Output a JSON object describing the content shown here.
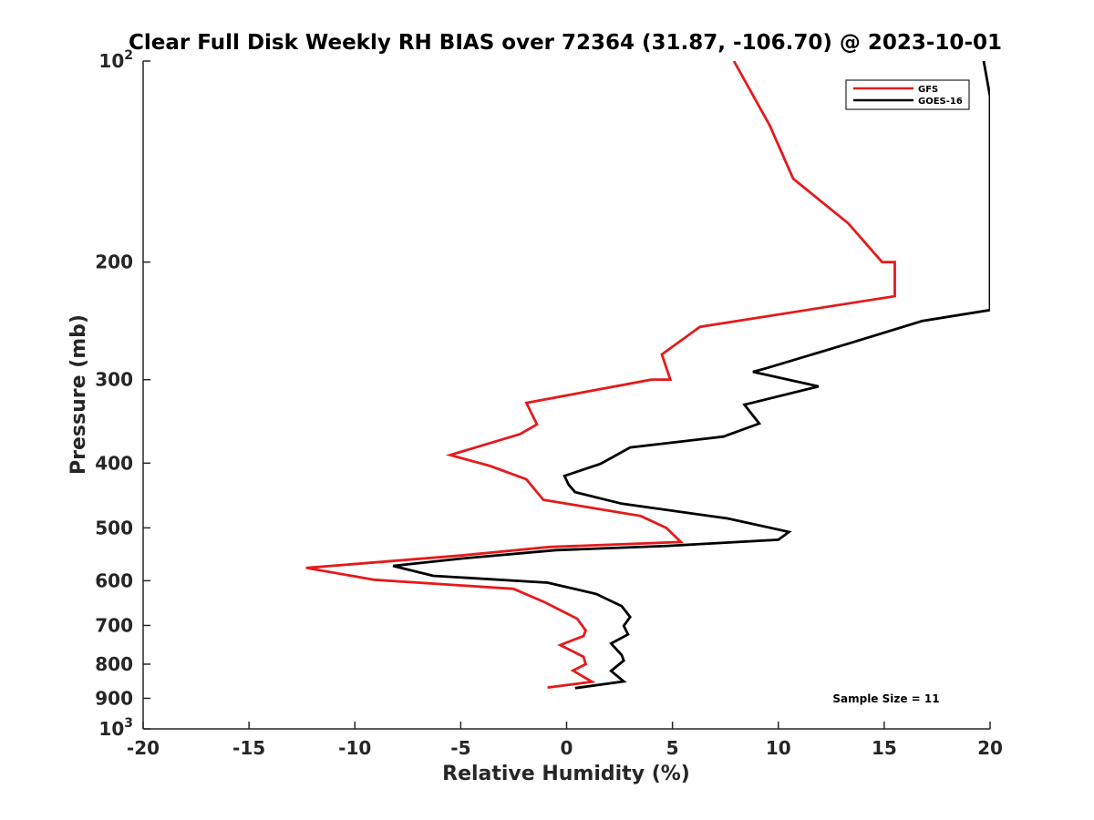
{
  "chart_data": {
    "type": "line",
    "title": "Clear Full Disk Weekly RH BIAS over 72364 (31.87, -106.70) @ 2023-10-01",
    "xlabel": "Relative Humidity (%)",
    "ylabel": "Pressure (mb)",
    "xlim": [
      -20,
      20
    ],
    "ylim": [
      100,
      1000
    ],
    "y_scale": "log",
    "y_reversed": true,
    "grid": false,
    "legend_position": "top-right",
    "x_ticks": [
      "-20",
      "-15",
      "-10",
      "-5",
      "0",
      "5",
      "10",
      "15",
      "20"
    ],
    "y_ticks": [
      {
        "value": 100,
        "base": "10",
        "exp": "2"
      },
      {
        "value": 200,
        "label": "200"
      },
      {
        "value": 300,
        "label": "300"
      },
      {
        "value": 400,
        "label": "400"
      },
      {
        "value": 500,
        "label": "500"
      },
      {
        "value": 600,
        "label": "600"
      },
      {
        "value": 700,
        "label": "700"
      },
      {
        "value": 800,
        "label": "800"
      },
      {
        "value": 900,
        "label": "900"
      },
      {
        "value": 1000,
        "base": "10",
        "exp": "3"
      }
    ],
    "series": [
      {
        "name": "GFS",
        "color": "#e41a1c",
        "points": [
          [
            7.9,
            100
          ],
          [
            9.6,
            125
          ],
          [
            10.7,
            150
          ],
          [
            13.3,
            175
          ],
          [
            14.9,
            200
          ],
          [
            15.5,
            200
          ],
          [
            15.5,
            225
          ],
          [
            6.3,
            250
          ],
          [
            4.5,
            275
          ],
          [
            4.9,
            300
          ],
          [
            4.0,
            300
          ],
          [
            -1.9,
            325
          ],
          [
            -1.4,
            350
          ],
          [
            -2.2,
            362
          ],
          [
            -5.5,
            389
          ],
          [
            -3.6,
            404
          ],
          [
            -1.9,
            423
          ],
          [
            -1.1,
            454
          ],
          [
            3.5,
            480
          ],
          [
            4.7,
            500
          ],
          [
            5.4,
            525
          ],
          [
            -0.8,
            534
          ],
          [
            -5.0,
            550
          ],
          [
            -12.3,
            574
          ],
          [
            -9.1,
            598
          ],
          [
            -2.5,
            617
          ],
          [
            -1.0,
            647
          ],
          [
            0.5,
            684
          ],
          [
            0.9,
            712
          ],
          [
            0.8,
            726
          ],
          [
            -0.3,
            749
          ],
          [
            0.8,
            780
          ],
          [
            0.9,
            800
          ],
          [
            0.3,
            818
          ],
          [
            1.2,
            850
          ],
          [
            -0.9,
            867
          ]
        ]
      },
      {
        "name": "GOES-16",
        "color": "#000000",
        "points": [
          [
            19.7,
            100
          ],
          [
            20.0,
            113
          ],
          [
            20.0,
            236
          ],
          [
            16.8,
            245
          ],
          [
            13.3,
            265
          ],
          [
            9.5,
            288
          ],
          [
            8.8,
            292
          ],
          [
            11.9,
            307
          ],
          [
            8.4,
            327
          ],
          [
            9.1,
            349
          ],
          [
            7.4,
            365
          ],
          [
            3.0,
            379
          ],
          [
            1.6,
            401
          ],
          [
            -0.1,
            418
          ],
          [
            0.1,
            431
          ],
          [
            0.4,
            442
          ],
          [
            2.6,
            460
          ],
          [
            7.6,
            484
          ],
          [
            10.5,
            507
          ],
          [
            10.0,
            521
          ],
          [
            4.8,
            532
          ],
          [
            -0.5,
            540
          ],
          [
            -5.0,
            556
          ],
          [
            -8.2,
            570
          ],
          [
            -6.3,
            590
          ],
          [
            -0.9,
            604
          ],
          [
            1.4,
            628
          ],
          [
            2.6,
            655
          ],
          [
            3.0,
            680
          ],
          [
            2.7,
            701
          ],
          [
            2.9,
            722
          ],
          [
            2.1,
            745
          ],
          [
            2.6,
            775
          ],
          [
            2.7,
            790
          ],
          [
            2.1,
            819
          ],
          [
            2.7,
            849
          ],
          [
            0.4,
            869
          ]
        ]
      }
    ],
    "annotation": "Sample Size = 11",
    "colors": {
      "axis": "#262626",
      "gfs": "#e41a1c",
      "goes": "#000000"
    }
  }
}
